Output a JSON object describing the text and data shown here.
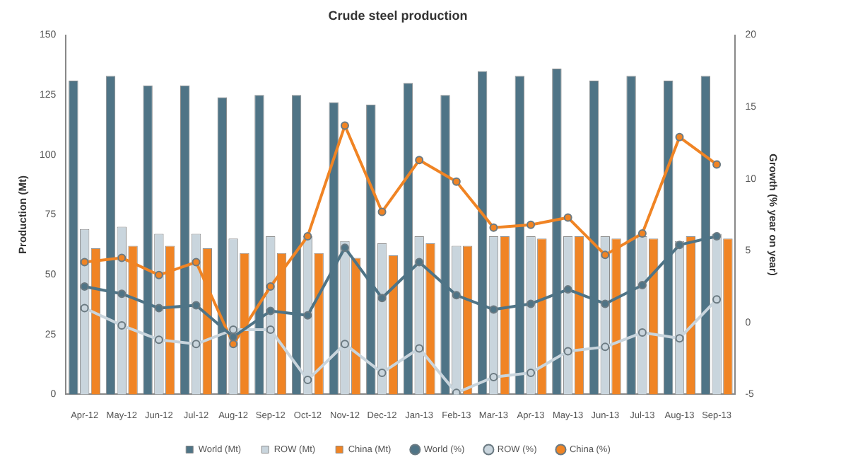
{
  "chart_data": {
    "type": "bar",
    "title": "Crude steel production",
    "ylabel": "Production (Mt)",
    "y2label": "Growth (% year on year)",
    "categories": [
      "Apr-12",
      "May-12",
      "Jun-12",
      "Jul-12",
      "Aug-12",
      "Sep-12",
      "Oct-12",
      "Nov-12",
      "Dec-12",
      "Jan-13",
      "Feb-13",
      "Mar-13",
      "Apr-13",
      "May-13",
      "Jun-13",
      "Jul-13",
      "Aug-13",
      "Sep-13"
    ],
    "series": [
      {
        "name": "World (Mt)",
        "color": "#4f7486",
        "values": [
          131,
          133,
          129,
          129,
          124,
          125,
          125,
          122,
          121,
          130,
          125,
          135,
          133,
          136,
          131,
          133,
          131,
          133
        ]
      },
      {
        "name": "ROW (Mt)",
        "color": "#c9d5dd",
        "values": [
          69,
          70,
          67,
          67,
          65,
          66,
          66,
          64,
          63,
          66,
          62,
          66,
          66,
          66,
          66,
          66,
          64,
          67
        ]
      },
      {
        "name": "China (Mt)",
        "color": "#f08424",
        "values": [
          61,
          62,
          62,
          61,
          59,
          59,
          59,
          57,
          58,
          63,
          62,
          66,
          65,
          66,
          65,
          65,
          66,
          65
        ]
      },
      {
        "name": "World (%)",
        "type": "line",
        "axis": "y2",
        "color": "#4f7486",
        "values": [
          2.5,
          2,
          1,
          1.2,
          -1,
          0.8,
          0.5,
          5.2,
          1.7,
          4.2,
          1.9,
          0.9,
          1.3,
          2.3,
          1.3,
          2.6,
          5.4,
          6
        ]
      },
      {
        "name": "ROW (%)",
        "type": "line",
        "axis": "y2",
        "color": "#c9d5dd",
        "values": [
          1,
          -0.2,
          -1.2,
          -1.5,
          -0.5,
          -0.5,
          -4,
          -1.5,
          -3.5,
          -1.8,
          -4.9,
          -3.8,
          -3.5,
          -2,
          -1.7,
          -0.7,
          -1.1,
          1.6
        ]
      },
      {
        "name": "China (%)",
        "type": "line",
        "axis": "y2",
        "color": "#f08424",
        "values": [
          4.2,
          4.5,
          3.3,
          4.2,
          -1.5,
          2.5,
          6,
          13.7,
          7.7,
          11.3,
          9.8,
          6.6,
          6.8,
          7.3,
          4.7,
          6.2,
          12.9,
          11
        ]
      }
    ],
    "ylim": [
      0,
      150
    ],
    "yticks": [
      0,
      25,
      50,
      75,
      100,
      125,
      150
    ],
    "y2lim": [
      -5,
      20
    ],
    "y2ticks": [
      -5,
      0,
      5,
      10,
      15,
      20
    ],
    "grid": false,
    "legend": "bottom",
    "marker": "circle",
    "line_style": "solid"
  }
}
